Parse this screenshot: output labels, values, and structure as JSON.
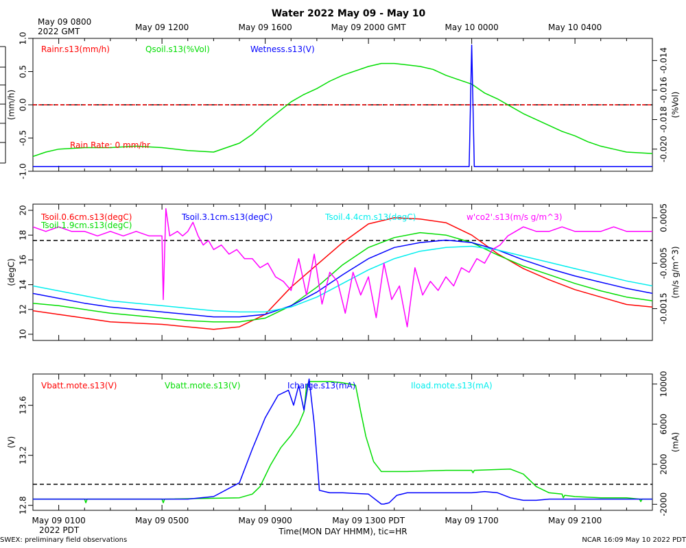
{
  "page": {
    "title": "Water 2022 May 09 - May 10",
    "left_footnote": "SWEX: preliminary field observations",
    "right_footnote": "NCAR 16:09 May 10 2022 PDT",
    "xlabel": "Time(MON DAY HHMM), tic=HR"
  },
  "top_axis": {
    "first_label_line1": "May 09 0800",
    "first_label_line2": "2022 GMT",
    "labels": [
      "May 09 1200",
      "May 09 1600",
      "May 09 2000 GMT",
      "May 10 0000",
      "May 10 0400"
    ]
  },
  "bottom_axis": {
    "first_label_line2": "2022 PDT",
    "labels": [
      "May 09 0100",
      "May 09 0500",
      "May 09 0900",
      "May 09 1300 PDT",
      "May 09 1700",
      "May 09 2100"
    ]
  },
  "colors": {
    "red": "#ff0000",
    "green": "#00dd00",
    "blue": "#0000ff",
    "cyan": "#00eeee",
    "magenta": "#ff00ff"
  },
  "chart_data": [
    {
      "type": "line",
      "panel": "top",
      "x_unit": "hours PDT, May 09",
      "xlim": [
        0,
        24
      ],
      "ylabel_left": "(mm/h)",
      "ylabel_right": "(%Vol)",
      "ylim_left": [
        -1.0,
        1.0
      ],
      "ylim_right": [
        -0.0215,
        -0.0125
      ],
      "left_ticks": [
        "1.0",
        "0.5",
        "0.0",
        "-0.5",
        "-1.0"
      ],
      "right_ticks": [
        "-0.014",
        "-0.016",
        "-0.018",
        "-0.020"
      ],
      "reference_line_left": 0.0,
      "annotation": "Rain Rate: 0 mm/hr",
      "legend": [
        "Rainr.s13(mm/h)",
        "Qsoil.s13(%Vol)",
        "Wetness.s13(V)"
      ],
      "series": [
        {
          "name": "Rainr.s13(mm/h)",
          "axis": "left",
          "x": [
            0,
            24
          ],
          "y": [
            0,
            0
          ]
        },
        {
          "name": "Qsoil.s13(%Vol)",
          "axis": "right",
          "x": [
            0,
            0.5,
            1,
            2,
            3,
            4,
            5,
            6,
            7,
            8,
            8.5,
            9,
            9.5,
            10,
            10.5,
            11,
            11.5,
            12,
            12.5,
            13,
            13.5,
            14,
            14.5,
            15,
            15.5,
            16,
            16.5,
            17,
            17.5,
            18,
            18.5,
            19,
            19.5,
            20,
            20.5,
            21,
            21.5,
            22,
            22.5,
            23,
            24
          ],
          "y": [
            -0.0205,
            -0.0202,
            -0.02,
            -0.0199,
            -0.0199,
            -0.0198,
            -0.0199,
            -0.0201,
            -0.0202,
            -0.0196,
            -0.019,
            -0.0182,
            -0.0175,
            -0.0168,
            -0.0163,
            -0.0159,
            -0.0154,
            -0.015,
            -0.0147,
            -0.0144,
            -0.0142,
            -0.0142,
            -0.0143,
            -0.0144,
            -0.0146,
            -0.015,
            -0.0153,
            -0.0156,
            -0.0162,
            -0.0166,
            -0.0171,
            -0.0176,
            -0.018,
            -0.0184,
            -0.0188,
            -0.0191,
            -0.0195,
            -0.0198,
            -0.02,
            -0.0202,
            -0.0203
          ]
        },
        {
          "name": "Wetness.s13(V)",
          "axis": "left",
          "x": [
            0,
            16.9,
            17.0,
            17.1,
            24
          ],
          "y": [
            -0.93,
            -0.93,
            0.9,
            -0.93,
            -0.93
          ]
        }
      ]
    },
    {
      "type": "line",
      "panel": "middle",
      "x_unit": "hours PDT, May 09",
      "xlim": [
        0,
        24
      ],
      "ylabel_left": "(degC)",
      "ylabel_right": "(m/s g/m^3)",
      "ylim_left": [
        9.5,
        20.5
      ],
      "ylim_right": [
        -0.0022,
        0.0008
      ],
      "left_ticks": [
        "20",
        "18",
        "16",
        "14",
        "12",
        "10"
      ],
      "right_ticks": [
        "0.0005",
        "-0.0005",
        "-0.0015"
      ],
      "right_tick_values": [
        0.0005,
        -0.0005,
        -0.0015
      ],
      "reference_line_right": 0.0,
      "legend": [
        "Tsoil.0.6cm.s13(degC)",
        "Tsoil.1.9cm.s13(degC)",
        "Tsoil.3.1cm.s13(degC)",
        "Tsoil.4.4cm.s13(degC)",
        "w'co2'.s13(m/s g/m^3)"
      ],
      "series": [
        {
          "name": "Tsoil.0.6cm.s13(degC)",
          "axis": "left",
          "x": [
            0,
            1,
            2,
            3,
            4,
            5,
            6,
            7,
            8,
            9,
            10,
            11,
            12,
            13,
            14,
            15,
            16,
            17,
            18,
            19,
            20,
            21,
            22,
            23,
            24
          ],
          "y": [
            11.9,
            11.6,
            11.3,
            11.0,
            10.9,
            10.8,
            10.6,
            10.4,
            10.6,
            11.6,
            13.8,
            15.6,
            17.4,
            18.9,
            19.4,
            19.3,
            19.0,
            18.0,
            16.5,
            15.3,
            14.4,
            13.6,
            13.0,
            12.4,
            12.2
          ]
        },
        {
          "name": "Tsoil.1.9cm.s13(degC)",
          "axis": "left",
          "x": [
            0,
            1,
            2,
            3,
            4,
            5,
            6,
            7,
            8,
            9,
            10,
            11,
            12,
            13,
            14,
            15,
            16,
            17,
            18,
            19,
            20,
            21,
            22,
            23,
            24
          ],
          "y": [
            12.5,
            12.3,
            12.0,
            11.7,
            11.5,
            11.3,
            11.1,
            11.0,
            11.0,
            11.3,
            12.3,
            13.8,
            15.6,
            17.0,
            17.8,
            18.2,
            18.0,
            17.4,
            16.4,
            15.5,
            14.8,
            14.1,
            13.5,
            13.0,
            12.7
          ]
        },
        {
          "name": "Tsoil.3.1cm.s13(degC)",
          "axis": "left",
          "x": [
            0,
            1,
            2,
            3,
            4,
            5,
            6,
            7,
            8,
            9,
            10,
            11,
            12,
            13,
            14,
            15,
            16,
            17,
            18,
            19,
            20,
            21,
            22,
            23,
            24
          ],
          "y": [
            13.3,
            12.9,
            12.5,
            12.2,
            12.0,
            11.8,
            11.6,
            11.4,
            11.4,
            11.6,
            12.3,
            13.4,
            14.8,
            16.1,
            17.0,
            17.4,
            17.6,
            17.4,
            16.8,
            16.0,
            15.3,
            14.7,
            14.2,
            13.7,
            13.3
          ]
        },
        {
          "name": "Tsoil.4.4cm.s13(degC)",
          "axis": "left",
          "x": [
            0,
            1,
            2,
            3,
            4,
            5,
            6,
            7,
            8,
            9,
            10,
            11,
            12,
            13,
            14,
            15,
            16,
            17,
            18,
            19,
            20,
            21,
            22,
            23,
            24
          ],
          "y": [
            13.9,
            13.5,
            13.1,
            12.7,
            12.5,
            12.3,
            12.1,
            11.9,
            11.8,
            11.8,
            12.2,
            13.0,
            14.1,
            15.2,
            16.1,
            16.7,
            17.0,
            17.1,
            16.8,
            16.3,
            15.8,
            15.3,
            14.8,
            14.3,
            13.9
          ]
        },
        {
          "name": "w'co2'.s13(m/s g/m^3)",
          "axis": "right",
          "x": [
            0,
            0.5,
            1,
            1.5,
            2,
            2.5,
            3,
            3.5,
            4,
            4.5,
            5,
            5.05,
            5.15,
            5.3,
            5.6,
            5.8,
            6.0,
            6.2,
            6.4,
            6.6,
            6.8,
            7.0,
            7.3,
            7.6,
            7.9,
            8.2,
            8.5,
            8.8,
            9.1,
            9.4,
            9.7,
            10.0,
            10.3,
            10.6,
            10.9,
            11.2,
            11.5,
            11.8,
            12.1,
            12.4,
            12.7,
            13.0,
            13.3,
            13.6,
            13.9,
            14.2,
            14.5,
            14.8,
            15.1,
            15.4,
            15.7,
            16.0,
            16.3,
            16.6,
            16.9,
            17.2,
            17.5,
            17.8,
            18.1,
            18.4,
            18.7,
            19.0,
            19.5,
            20.0,
            20.5,
            21.0,
            21.5,
            22.0,
            22.5,
            23.0,
            23.5,
            24.0
          ],
          "y": [
            0.0003,
            0.0002,
            0.0003,
            0.0002,
            0.0002,
            0.0001,
            0.0002,
            0.0001,
            0.0002,
            0.0001,
            0.0001,
            -0.0013,
            0.0007,
            0.0001,
            0.0002,
            0.0001,
            0.0002,
            0.0004,
            0.0001,
            -0.0001,
            0.0,
            -0.0002,
            -0.0001,
            -0.0003,
            -0.0002,
            -0.0004,
            -0.0004,
            -0.0006,
            -0.0005,
            -0.0008,
            -0.0009,
            -0.0011,
            -0.0004,
            -0.0012,
            -0.0003,
            -0.0014,
            -0.0007,
            -0.0009,
            -0.0016,
            -0.0007,
            -0.0012,
            -0.0008,
            -0.0017,
            -0.0005,
            -0.0013,
            -0.001,
            -0.0019,
            -0.0006,
            -0.0012,
            -0.0009,
            -0.0011,
            -0.0008,
            -0.001,
            -0.0006,
            -0.0007,
            -0.0004,
            -0.0005,
            -0.0002,
            -0.0001,
            0.0001,
            0.0002,
            0.0003,
            0.0002,
            0.0002,
            0.0003,
            0.0002,
            0.0002,
            0.0002,
            0.0003,
            0.0002,
            0.0002,
            0.0002
          ]
        }
      ]
    },
    {
      "type": "line",
      "panel": "bottom",
      "x_unit": "hours PDT, May 09",
      "xlim": [
        0,
        24
      ],
      "ylabel_left": "(V)",
      "ylabel_right": "(mA)",
      "ylim_left": [
        12.76,
        13.85
      ],
      "ylim_right": [
        -2600,
        11000
      ],
      "left_ticks": [
        "13.6",
        "13.2",
        "12.8"
      ],
      "right_ticks": [
        "10000",
        "6000",
        "2000",
        "-2000"
      ],
      "right_tick_values": [
        10000,
        6000,
        2000,
        -2000
      ],
      "reference_line_right": 0,
      "legend": [
        "Vbatt.mote.s13(V)",
        "Vbatt.mote.s13(V)",
        "Icharge.s13(mA)",
        "Iload.mote.s13(mA)"
      ],
      "series": [
        {
          "name": "Vbatt.mote.s13(V)",
          "axis": "left",
          "x": [
            0,
            2,
            2.05,
            2.1,
            5,
            5.05,
            5.1,
            8,
            8.5,
            8.8,
            9.2,
            9.6,
            10.0,
            10.3,
            10.5,
            10.6,
            10.7,
            11.0,
            11.5,
            12.0,
            12.5,
            12.7,
            12.9,
            13.2,
            13.5,
            13.9,
            14.2,
            14.5,
            16,
            17,
            17.05,
            17.1,
            18.5,
            19.0,
            19.5,
            20.0,
            20.5,
            20.55,
            20.6,
            21.0,
            22.0,
            23.0,
            23.5,
            23.55,
            23.6,
            24
          ],
          "y": [
            12.85,
            12.85,
            12.82,
            12.85,
            12.85,
            12.82,
            12.85,
            12.86,
            12.89,
            12.95,
            13.12,
            13.26,
            13.36,
            13.45,
            13.55,
            13.75,
            13.79,
            13.79,
            13.79,
            13.78,
            13.76,
            13.55,
            13.35,
            13.15,
            13.07,
            13.07,
            13.07,
            13.07,
            13.08,
            13.08,
            13.06,
            13.08,
            13.09,
            13.05,
            12.95,
            12.9,
            12.89,
            12.86,
            12.88,
            12.87,
            12.86,
            12.86,
            12.85,
            12.83,
            12.85,
            12.85
          ]
        },
        {
          "name": "Icharge.s13(mA)",
          "axis": "left",
          "x": [
            0,
            4,
            6,
            7,
            8,
            8.5,
            9.0,
            9.5,
            9.9,
            10.1,
            10.3,
            10.5,
            10.7,
            10.9,
            11.1,
            11.3,
            11.5,
            12.0,
            13.0,
            13.5,
            13.6,
            13.8,
            14.1,
            14.5,
            16,
            17,
            17.5,
            18.0,
            18.5,
            19.0,
            19.5,
            20,
            21,
            22,
            23,
            24
          ],
          "y": [
            12.85,
            12.85,
            12.85,
            12.87,
            12.98,
            13.25,
            13.5,
            13.68,
            13.72,
            13.6,
            13.76,
            13.56,
            13.81,
            13.45,
            12.92,
            12.91,
            12.9,
            12.9,
            12.89,
            12.81,
            12.81,
            12.82,
            12.88,
            12.9,
            12.9,
            12.9,
            12.91,
            12.9,
            12.86,
            12.84,
            12.84,
            12.85,
            12.85,
            12.85,
            12.85,
            12.85
          ]
        },
        {
          "name": "Iload.mote.s13(mA)",
          "axis": "right",
          "x": [],
          "y": []
        }
      ]
    }
  ]
}
